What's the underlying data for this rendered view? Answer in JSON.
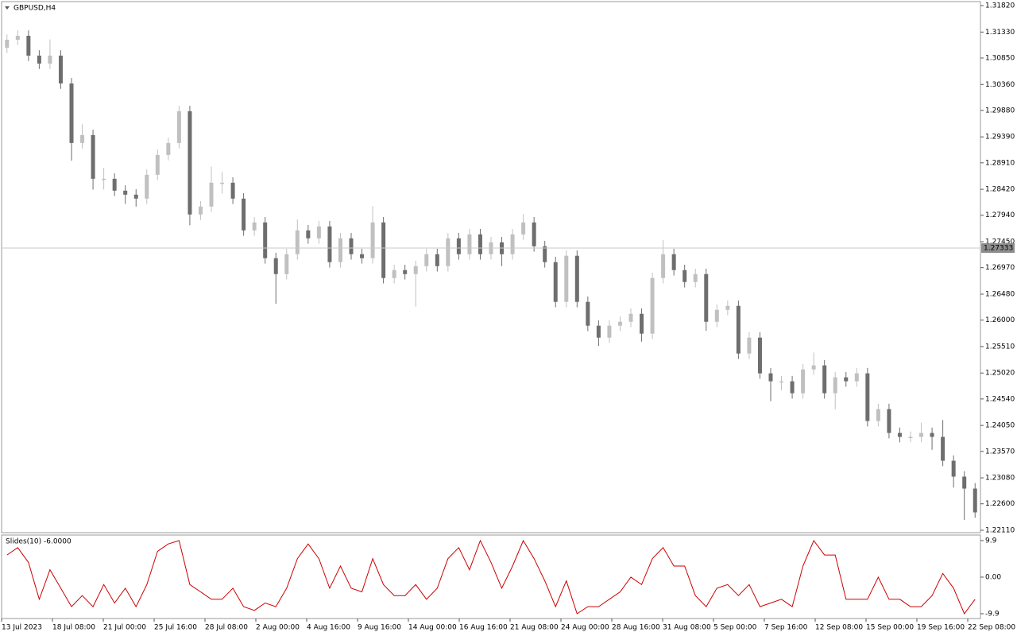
{
  "chart_data": [
    {
      "type": "candlestick",
      "title": "GBPUSD,H4",
      "open": [
        1.3104,
        1.31188,
        1.31261,
        1.30894,
        1.30747,
        1.30894,
        1.30379,
        1.29277,
        1.29424,
        1.28615,
        1.28615,
        1.28395,
        1.28321,
        1.28248,
        1.28689,
        1.29056,
        1.29277,
        1.29865,
        1.27954,
        1.28101,
        1.28542,
        1.28542,
        1.28248,
        1.2766,
        1.27807,
        1.27145,
        1.26851,
        1.27219,
        1.2766,
        1.27513,
        1.27733,
        1.27072,
        1.27513,
        1.27219,
        1.27145,
        1.27807,
        1.26778,
        1.26925,
        1.26851,
        1.26998,
        1.27219,
        1.26998,
        1.27513,
        1.27219,
        1.27586,
        1.27219,
        1.27439,
        1.27219,
        1.27586,
        1.27807,
        1.27366,
        1.27072,
        1.26337,
        1.2719,
        1.26337,
        1.25896,
        1.25675,
        1.25896,
        1.25969,
        1.26116,
        1.25749,
        1.26778,
        1.27219,
        1.26925,
        1.26704,
        1.26851,
        1.25969,
        1.2619,
        1.26263,
        1.25381,
        1.25675,
        1.25014,
        1.24867,
        1.24867,
        1.24646,
        1.25087,
        1.25161,
        1.24646,
        1.2494,
        1.24867,
        1.25014,
        1.24132,
        1.24352,
        1.23911,
        1.23838,
        1.23838,
        1.23911,
        1.23838,
        1.23397,
        1.23103,
        1.22882
      ],
      "high": [
        1.31288,
        1.31361,
        1.31361,
        1.30994,
        1.31194,
        1.30994,
        1.30479,
        1.29624,
        1.29524,
        1.28815,
        1.28715,
        1.28495,
        1.28421,
        1.28789,
        1.29156,
        1.29377,
        1.29965,
        1.29965,
        1.28201,
        1.28842,
        1.28742,
        1.28642,
        1.28348,
        1.27907,
        1.27907,
        1.27245,
        1.27319,
        1.2786,
        1.2776,
        1.27833,
        1.27833,
        1.27613,
        1.27613,
        1.27319,
        1.28107,
        1.27907,
        1.27025,
        1.27025,
        1.27098,
        1.27319,
        1.27319,
        1.27613,
        1.27613,
        1.27686,
        1.27686,
        1.27539,
        1.27539,
        1.27686,
        1.2796,
        1.27907,
        1.27466,
        1.27172,
        1.2729,
        1.2729,
        1.26437,
        1.25996,
        1.25996,
        1.26069,
        1.26216,
        1.26216,
        1.26878,
        1.2748,
        1.27319,
        1.27025,
        1.26951,
        1.26951,
        1.2629,
        1.26363,
        1.26363,
        1.25775,
        1.25775,
        1.25114,
        1.24967,
        1.24967,
        1.25187,
        1.254,
        1.25261,
        1.2504,
        1.2504,
        1.25114,
        1.25114,
        1.24452,
        1.24452,
        1.24011,
        1.23938,
        1.241,
        1.24011,
        1.2415,
        1.23497,
        1.23203,
        1.22982
      ],
      "low": [
        1.3094,
        1.31088,
        1.30794,
        1.30647,
        1.30647,
        1.30279,
        1.2895,
        1.29177,
        1.28415,
        1.28415,
        1.28295,
        1.2815,
        1.281,
        1.28148,
        1.28589,
        1.28956,
        1.29177,
        1.27754,
        1.27854,
        1.28001,
        1.28342,
        1.28148,
        1.2756,
        1.2756,
        1.27045,
        1.263,
        1.26751,
        1.27119,
        1.27413,
        1.27413,
        1.26972,
        1.26972,
        1.27119,
        1.27045,
        1.27045,
        1.26678,
        1.26678,
        1.26751,
        1.2625,
        1.26898,
        1.26898,
        1.26898,
        1.27119,
        1.27119,
        1.27119,
        1.27119,
        1.26998,
        1.27119,
        1.27486,
        1.27266,
        1.26972,
        1.26237,
        1.26237,
        1.26237,
        1.25796,
        1.2552,
        1.25575,
        1.25796,
        1.25869,
        1.256,
        1.25649,
        1.26678,
        1.26825,
        1.26604,
        1.26604,
        1.258,
        1.25869,
        1.2609,
        1.25281,
        1.25281,
        1.24914,
        1.245,
        1.247,
        1.24546,
        1.24546,
        1.24987,
        1.24546,
        1.2435,
        1.24767,
        1.24767,
        1.24032,
        1.24032,
        1.23811,
        1.23738,
        1.23738,
        1.23738,
        1.236,
        1.23297,
        1.229,
        1.223,
        1.22341
      ],
      "close": [
        1.31188,
        1.31261,
        1.30894,
        1.30747,
        1.30894,
        1.30379,
        1.29277,
        1.29424,
        1.28615,
        1.28615,
        1.28395,
        1.28321,
        1.28248,
        1.28689,
        1.29056,
        1.29277,
        1.29865,
        1.27954,
        1.28101,
        1.28542,
        1.28542,
        1.28248,
        1.2766,
        1.27807,
        1.27145,
        1.26851,
        1.27219,
        1.2766,
        1.27513,
        1.27733,
        1.27072,
        1.27513,
        1.27219,
        1.27145,
        1.27807,
        1.26778,
        1.26925,
        1.26851,
        1.26998,
        1.27219,
        1.26998,
        1.27513,
        1.27219,
        1.27586,
        1.27219,
        1.27439,
        1.27219,
        1.27586,
        1.27807,
        1.27366,
        1.27072,
        1.26337,
        1.2719,
        1.26337,
        1.25896,
        1.25675,
        1.25896,
        1.25969,
        1.26116,
        1.25749,
        1.26778,
        1.27219,
        1.26925,
        1.26704,
        1.26851,
        1.25969,
        1.2619,
        1.26263,
        1.25381,
        1.25675,
        1.25014,
        1.24867,
        1.24867,
        1.24646,
        1.25087,
        1.25161,
        1.24646,
        1.2494,
        1.24867,
        1.25014,
        1.24132,
        1.24352,
        1.23911,
        1.23838,
        1.23838,
        1.23911,
        1.23838,
        1.23397,
        1.23103,
        1.22882,
        1.22441
      ],
      "up_color": "#c0c0c0",
      "down_color": "#6e6e6e",
      "ylim": [
        1.22066,
        1.31894
      ],
      "yticks": [
        {
          "value": 1.3182,
          "label": "1.31820"
        },
        {
          "value": 1.3133,
          "label": "1.31330"
        },
        {
          "value": 1.3085,
          "label": "1.30850"
        },
        {
          "value": 1.3036,
          "label": "1.30360"
        },
        {
          "value": 1.2988,
          "label": "1.29880"
        },
        {
          "value": 1.2939,
          "label": "1.29390"
        },
        {
          "value": 1.2891,
          "label": "1.28910"
        },
        {
          "value": 1.2842,
          "label": "1.28420"
        },
        {
          "value": 1.2794,
          "label": "1.27940"
        },
        {
          "value": 1.2745,
          "label": "1.27450"
        },
        {
          "value": 1.2697,
          "label": "1.26970"
        },
        {
          "value": 1.2648,
          "label": "1.26480"
        },
        {
          "value": 1.26,
          "label": "1.26000"
        },
        {
          "value": 1.2551,
          "label": "1.25510"
        },
        {
          "value": 1.2502,
          "label": "1.25020"
        },
        {
          "value": 1.2454,
          "label": "1.24540"
        },
        {
          "value": 1.2405,
          "label": "1.24050"
        },
        {
          "value": 1.2357,
          "label": "1.23570"
        },
        {
          "value": 1.2308,
          "label": "1.23080"
        },
        {
          "value": 1.226,
          "label": "1.22600"
        },
        {
          "value": 1.2211,
          "label": "1.22110"
        }
      ],
      "price_line": {
        "value": 1.27333,
        "label": "1.27333"
      },
      "x_labels": [
        "13 Jul 2023",
        "18 Jul 08:00",
        "21 Jul 00:00",
        "25 Jul 16:00",
        "28 Jul 08:00",
        "2 Aug 00:00",
        "4 Aug 16:00",
        "9 Aug 16:00",
        "14 Aug 00:00",
        "16 Aug 16:00",
        "21 Aug 08:00",
        "24 Aug 00:00",
        "28 Aug 16:00",
        "31 Aug 08:00",
        "5 Sep 00:00",
        "7 Sep 16:00",
        "12 Sep 08:00",
        "15 Sep 00:00",
        "19 Sep 16:00",
        "22 Sep 08:00"
      ]
    },
    {
      "type": "line",
      "title": "Slides(10) -6.0000",
      "series": [
        {
          "color": "#cc0000",
          "values": [
            6,
            8,
            4,
            -6,
            2,
            -3,
            -8,
            -5,
            -8,
            -2,
            -7,
            -3,
            -8,
            -2,
            7,
            9,
            9.9,
            -2,
            -4,
            -6,
            -6,
            -3,
            -8,
            -9,
            -7,
            -8,
            -3,
            5,
            9,
            5,
            -3,
            3,
            -3,
            -4,
            5,
            -2,
            -5,
            -5,
            -2,
            -6,
            -3,
            5,
            8,
            2,
            9.9,
            4,
            -3,
            3,
            9.9,
            5,
            -1,
            -8,
            -1,
            -9.9,
            -8,
            -8,
            -6,
            -4,
            0,
            -2,
            5,
            8,
            3,
            3,
            -5,
            -8,
            -3,
            -2,
            -5,
            -2,
            -8,
            -7,
            -6,
            -8,
            3,
            9.9,
            6,
            6,
            -6,
            -6,
            -6,
            0,
            -6,
            -6,
            -8,
            -8,
            -5,
            1,
            -3,
            -9.9,
            -6
          ]
        }
      ],
      "ylim": [
        -11.2,
        11.4
      ],
      "yticks": [
        9.9,
        {
          "value": 0,
          "label": "0.00"
        },
        -9.9
      ]
    }
  ]
}
